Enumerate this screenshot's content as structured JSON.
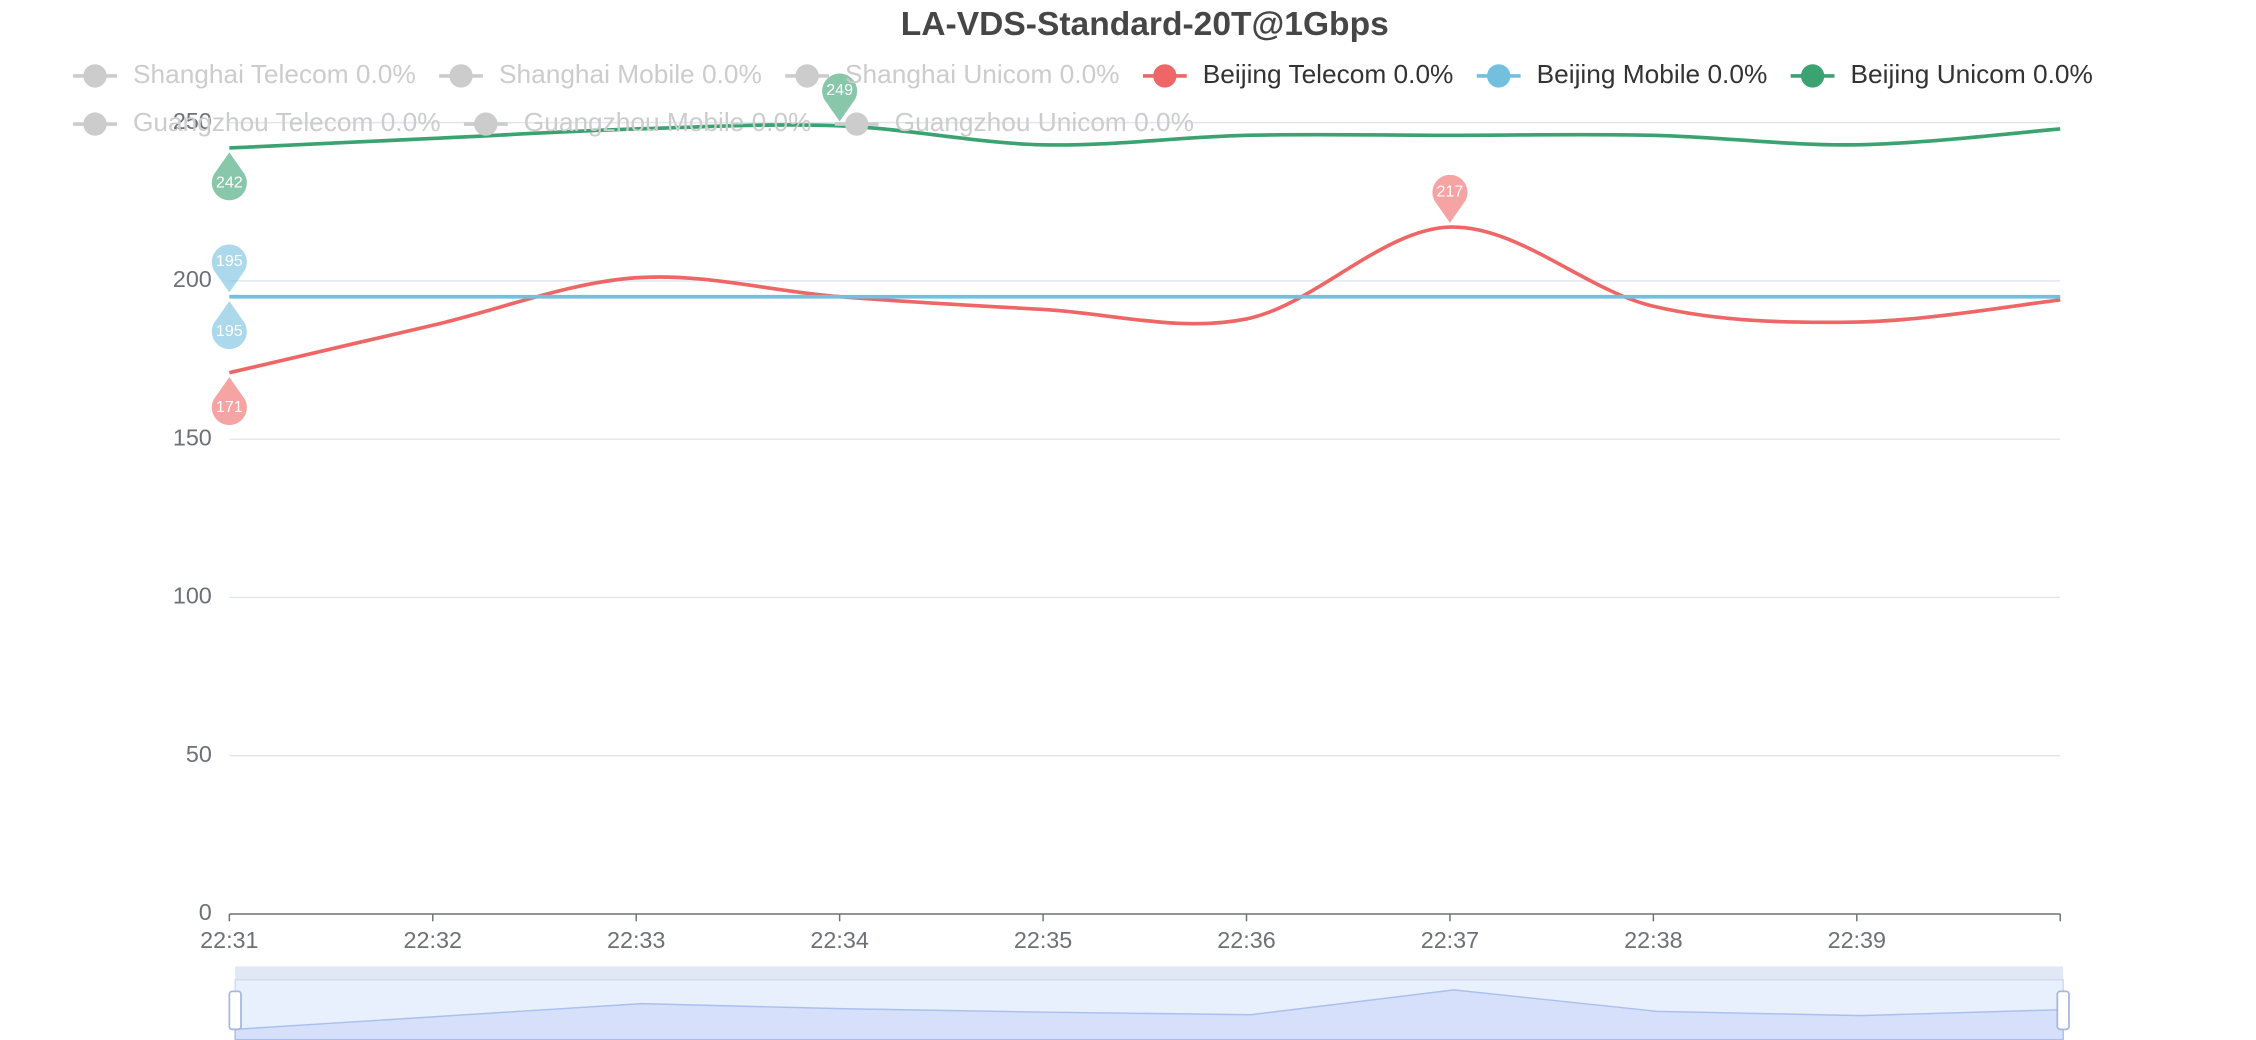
{
  "chart_data": {
    "type": "line",
    "title": "LA-VDS-Standard-20T@1Gbps",
    "categories": [
      "22:31",
      "22:32",
      "22:33",
      "22:34",
      "22:35",
      "22:36",
      "22:37",
      "22:38",
      "22:39",
      null
    ],
    "series": [
      {
        "name": "Shanghai Telecom 0.0%",
        "color": "#cccccc",
        "selected": false
      },
      {
        "name": "Shanghai Mobile 0.0%",
        "color": "#cccccc",
        "selected": false
      },
      {
        "name": "Shanghai Unicom 0.0%",
        "color": "#cccccc",
        "selected": false
      },
      {
        "name": "Beijing Telecom 0.0%",
        "color": "#ee6666",
        "selected": true,
        "values": [
          171,
          186,
          201,
          195,
          191,
          188,
          217,
          192,
          187,
          194
        ]
      },
      {
        "name": "Beijing Mobile 0.0%",
        "color": "#73c0de",
        "selected": true,
        "values": [
          195,
          195,
          195,
          195,
          195,
          195,
          195,
          195,
          195,
          195
        ]
      },
      {
        "name": "Beijing Unicom 0.0%",
        "color": "#3ba272",
        "selected": true,
        "values": [
          242,
          245,
          248,
          249,
          243,
          246,
          246,
          246,
          243,
          248
        ]
      },
      {
        "name": "Guangzhou Telecom 0.0%",
        "color": "#cccccc",
        "selected": false
      },
      {
        "name": "Guangzhou Mobile 0.0%",
        "color": "#cccccc",
        "selected": false
      },
      {
        "name": "Guangzhou Unicom 0.0%",
        "color": "#cccccc",
        "selected": false
      }
    ],
    "ylim": [
      0,
      250
    ],
    "yticks": [
      0,
      50,
      100,
      150,
      200,
      250
    ],
    "grid": true,
    "smooth": true,
    "data_zoom": true
  }
}
